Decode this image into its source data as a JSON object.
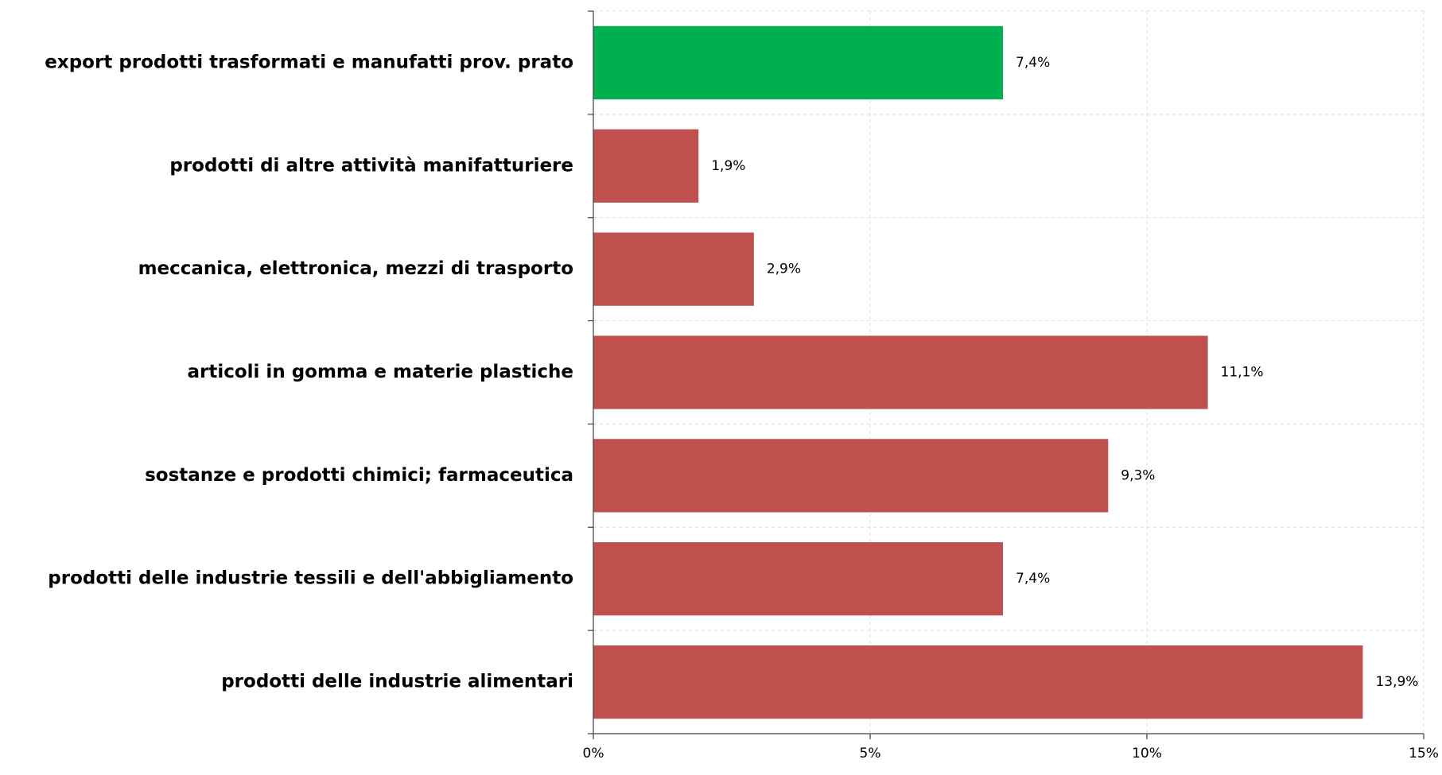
{
  "chart_data": {
    "type": "bar",
    "orientation": "horizontal",
    "title": "",
    "xlabel": "",
    "ylabel": "",
    "xlim": [
      0,
      15
    ],
    "x_ticks": [
      "0%",
      "5%",
      "10%",
      "15%"
    ],
    "x_tick_values": [
      0,
      5,
      10,
      15
    ],
    "grid": "vertical-dashed",
    "legend": "none",
    "categories": [
      "export prodotti trasformati e manufatti prov. prato",
      "prodotti di altre attività manifatturiere",
      "meccanica, elettronica, mezzi di trasporto",
      "articoli in gomma e materie plastiche",
      "sostanze e prodotti chimici; farmaceutica",
      "prodotti delle industrie tessili e dell'abbigliamento",
      "prodotti delle industrie alimentari"
    ],
    "values": [
      7.4,
      1.9,
      2.9,
      11.1,
      9.3,
      7.4,
      13.9
    ],
    "value_labels": [
      "7,4%",
      "1,9%",
      "2,9%",
      "11,1%",
      "9,3%",
      "7,4%",
      "13,9%"
    ],
    "bar_colors": [
      "#00b050",
      "#c0504d",
      "#c0504d",
      "#c0504d",
      "#c0504d",
      "#c0504d",
      "#c0504d"
    ]
  }
}
